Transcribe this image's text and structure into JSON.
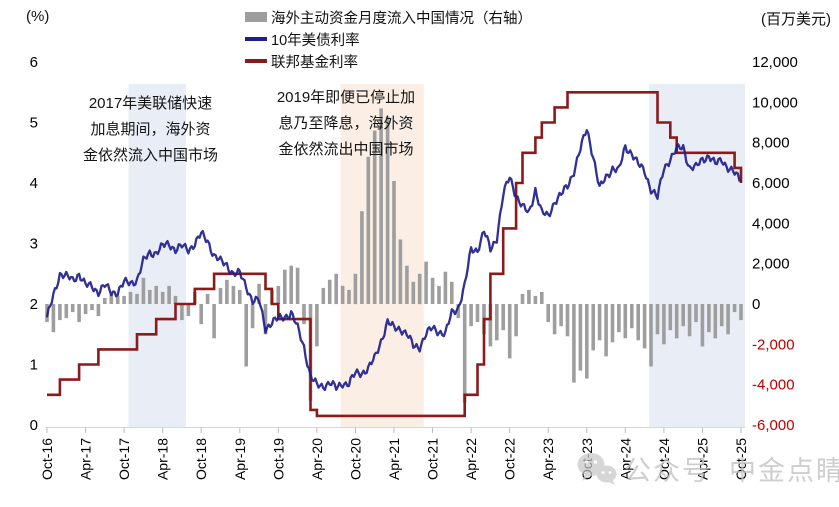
{
  "units": {
    "left": "(%)",
    "right": "(百万美元)"
  },
  "legend": {
    "items": [
      {
        "label": "海外主动资金月度流入中国情况（右轴）",
        "swatch": "bar"
      },
      {
        "label": "10年美债利率",
        "swatch": "line"
      },
      {
        "label": "联邦基金利率",
        "swatch": "line"
      }
    ]
  },
  "annotations": [
    {
      "lines": [
        "2017年美联储快速",
        "加息期间，海外资",
        "金依然流入中国市场"
      ]
    },
    {
      "lines": [
        "2019年即便已停止加",
        "息乃至降息，海外资",
        "金依然流出中国市场"
      ]
    }
  ],
  "watermark": {
    "prefix": "公众号",
    "name": "中金点睛"
  },
  "colors": {
    "bars": "#9e9e9e",
    "ust10y": "#1e1e8c",
    "fed_funds": "#8b1a1a",
    "region_blue": "#e9edf5",
    "region_orange": "#faeee5",
    "negative_tick": "#c00000",
    "axis_line": "#d8d8d8",
    "tick_mark": "#bdbdbd",
    "watermark": "#c3c3c3"
  },
  "chart_data": {
    "type": "combo",
    "frequency": "monthly",
    "x_start": "Oct-16",
    "x_end": "Oct-25",
    "n_points": 109,
    "x_tick_labels": [
      "Oct-16",
      "Apr-17",
      "Oct-17",
      "Apr-18",
      "Oct-18",
      "Apr-19",
      "Oct-19",
      "Apr-20",
      "Oct-20",
      "Apr-21",
      "Oct-21",
      "Apr-22",
      "Oct-22",
      "Apr-23",
      "Oct-23",
      "Apr-24",
      "Oct-24",
      "Apr-25",
      "Oct-25"
    ],
    "left_axis": {
      "label": "(%)",
      "min": 0,
      "max": 6,
      "tick_labels": [
        "6",
        "5",
        "4",
        "3",
        "2",
        "1",
        "0"
      ],
      "tick_values": [
        6,
        5,
        4,
        3,
        2,
        1,
        0
      ]
    },
    "right_axis": {
      "label": "(百万美元)",
      "min": -6000,
      "max": 12000,
      "tick_labels": [
        "12,000",
        "10,000",
        "8,000",
        "6,000",
        "4,000",
        "2,000",
        "0",
        "-2,000",
        "-4,000",
        "-6,000"
      ],
      "tick_values": [
        12000,
        10000,
        8000,
        6000,
        4000,
        2000,
        0,
        -2000,
        -4000,
        -6000
      ]
    },
    "grid": false,
    "legend_position": "top",
    "series": [
      {
        "name": "海外主动资金月度流入中国情况（右轴）",
        "type": "bar",
        "axis": "right",
        "color": "#9e9e9e",
        "values": [
          -900,
          -1400,
          -800,
          -700,
          -400,
          -900,
          -500,
          -300,
          -600,
          300,
          500,
          400,
          400,
          600,
          500,
          1300,
          700,
          900,
          600,
          900,
          400,
          -800,
          -600,
          600,
          -1000,
          500,
          -1700,
          800,
          1200,
          900,
          700,
          -3100,
          -1200,
          1000,
          -1500,
          700,
          900,
          1700,
          1900,
          1800,
          -1000,
          -4800,
          -2100,
          800,
          1200,
          1500,
          900,
          700,
          1500,
          4600,
          7300,
          8600,
          9700,
          9300,
          6100,
          3200,
          1900,
          1100,
          1500,
          2100,
          1300,
          900,
          1600,
          1100,
          -700,
          -4900,
          -1100,
          -900,
          -1500,
          -2100,
          -1800,
          -1300,
          -2700,
          -1600,
          500,
          700,
          400,
          600,
          -900,
          -1500,
          -1100,
          -1600,
          -3900,
          -3300,
          -3700,
          -2300,
          -1800,
          -2600,
          -1900,
          -1400,
          -1700,
          -1200,
          -1800,
          -2200,
          -3100,
          -1500,
          -2000,
          -1300,
          -1700,
          -1100,
          -1600,
          -900,
          -2100,
          -1400,
          -1700,
          -1100,
          -1500,
          -400,
          -800
        ]
      },
      {
        "name": "10年美债利率",
        "type": "line",
        "axis": "left",
        "color": "#1e1e8c",
        "values": [
          1.75,
          2.15,
          2.5,
          2.45,
          2.4,
          2.5,
          2.3,
          2.3,
          2.2,
          2.3,
          2.2,
          2.2,
          2.35,
          2.35,
          2.4,
          2.7,
          2.85,
          2.85,
          2.95,
          3.0,
          2.9,
          2.95,
          2.9,
          3.0,
          3.15,
          3.05,
          2.8,
          2.7,
          2.65,
          2.5,
          2.5,
          2.3,
          2.05,
          2.05,
          1.6,
          1.7,
          1.75,
          1.8,
          1.85,
          1.6,
          1.3,
          0.8,
          0.65,
          0.65,
          0.7,
          0.6,
          0.7,
          0.68,
          0.85,
          0.87,
          0.93,
          1.1,
          1.4,
          1.7,
          1.6,
          1.6,
          1.5,
          1.3,
          1.3,
          1.5,
          1.6,
          1.55,
          1.5,
          1.85,
          1.95,
          2.3,
          2.9,
          2.9,
          3.2,
          2.9,
          3.1,
          3.8,
          4.1,
          3.8,
          3.6,
          3.5,
          3.9,
          3.5,
          3.45,
          3.7,
          3.8,
          3.95,
          4.2,
          4.55,
          4.9,
          4.45,
          3.9,
          4.1,
          4.25,
          4.2,
          4.6,
          4.5,
          4.3,
          4.2,
          3.9,
          3.75,
          4.25,
          4.4,
          4.55,
          4.6,
          4.25,
          4.25,
          4.4,
          4.45,
          4.3,
          4.4,
          4.25,
          4.15,
          4.05
        ]
      },
      {
        "name": "联邦基金利率",
        "type": "step",
        "axis": "left",
        "color": "#8b1a1a",
        "values": [
          0.5,
          0.5,
          0.75,
          0.75,
          0.75,
          1.0,
          1.0,
          1.0,
          1.25,
          1.25,
          1.25,
          1.25,
          1.25,
          1.25,
          1.5,
          1.5,
          1.5,
          1.75,
          1.75,
          1.75,
          2.0,
          2.0,
          2.0,
          2.25,
          2.25,
          2.25,
          2.5,
          2.5,
          2.5,
          2.5,
          2.5,
          2.5,
          2.5,
          2.5,
          2.25,
          2.0,
          1.75,
          1.75,
          1.75,
          1.75,
          1.75,
          0.25,
          0.15,
          0.15,
          0.15,
          0.15,
          0.15,
          0.15,
          0.15,
          0.15,
          0.15,
          0.15,
          0.15,
          0.15,
          0.15,
          0.15,
          0.15,
          0.15,
          0.15,
          0.15,
          0.15,
          0.15,
          0.15,
          0.15,
          0.15,
          0.5,
          0.5,
          1.0,
          1.75,
          2.5,
          2.5,
          3.25,
          3.25,
          4.0,
          4.5,
          4.5,
          4.75,
          5.0,
          5.0,
          5.25,
          5.25,
          5.5,
          5.5,
          5.5,
          5.5,
          5.5,
          5.5,
          5.5,
          5.5,
          5.5,
          5.5,
          5.5,
          5.5,
          5.5,
          5.5,
          5.0,
          5.0,
          4.75,
          4.5,
          4.5,
          4.5,
          4.5,
          4.5,
          4.5,
          4.5,
          4.5,
          4.5,
          4.25,
          4.0
        ]
      }
    ],
    "regions": [
      {
        "start_index": 13,
        "end_index": 21,
        "color": "#e9edf5",
        "meaning": "2017 hiking period"
      },
      {
        "start_index": 46,
        "end_index": 58,
        "color": "#faeee5",
        "meaning": "2019-20 pause/cut period"
      },
      {
        "start_index": 94,
        "end_index": 108,
        "color": "#e9edf5",
        "meaning": "2024-25 cutting period"
      }
    ]
  }
}
